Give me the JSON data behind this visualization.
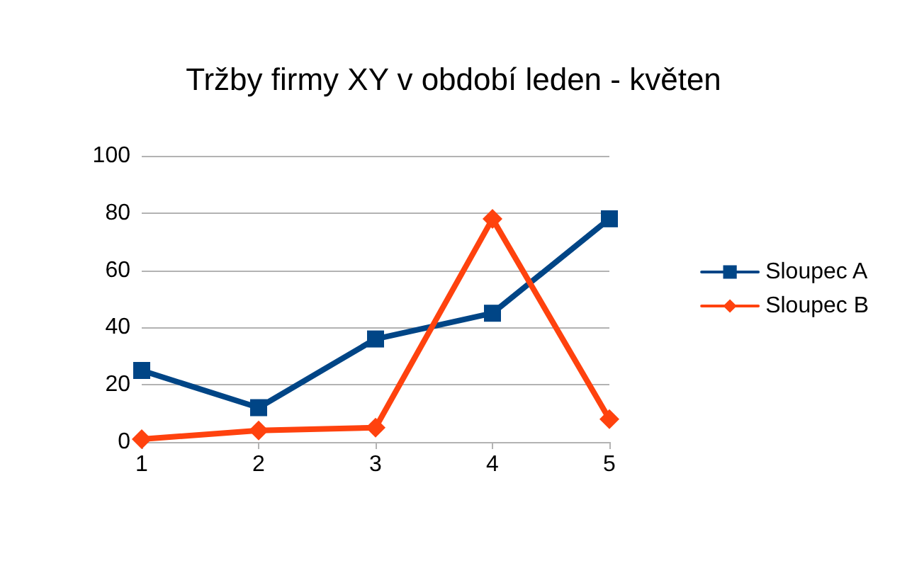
{
  "chart_data": {
    "type": "line",
    "title": "Tržby firmy XY v období leden - květen",
    "x": [
      1,
      2,
      3,
      4,
      5
    ],
    "xlim": [
      1,
      5
    ],
    "xticks": [
      1,
      2,
      3,
      4,
      5
    ],
    "ylim": [
      0,
      100
    ],
    "yticks": [
      0,
      20,
      40,
      60,
      80,
      100
    ],
    "grid": "y",
    "legend": "right",
    "series": [
      {
        "name": "Sloupec A",
        "color": "#004586",
        "marker": "square",
        "values": [
          25,
          12,
          36,
          45,
          78
        ]
      },
      {
        "name": "Sloupec B",
        "color": "#ff420e",
        "marker": "diamond",
        "values": [
          1,
          4,
          5,
          78,
          8
        ]
      }
    ]
  }
}
